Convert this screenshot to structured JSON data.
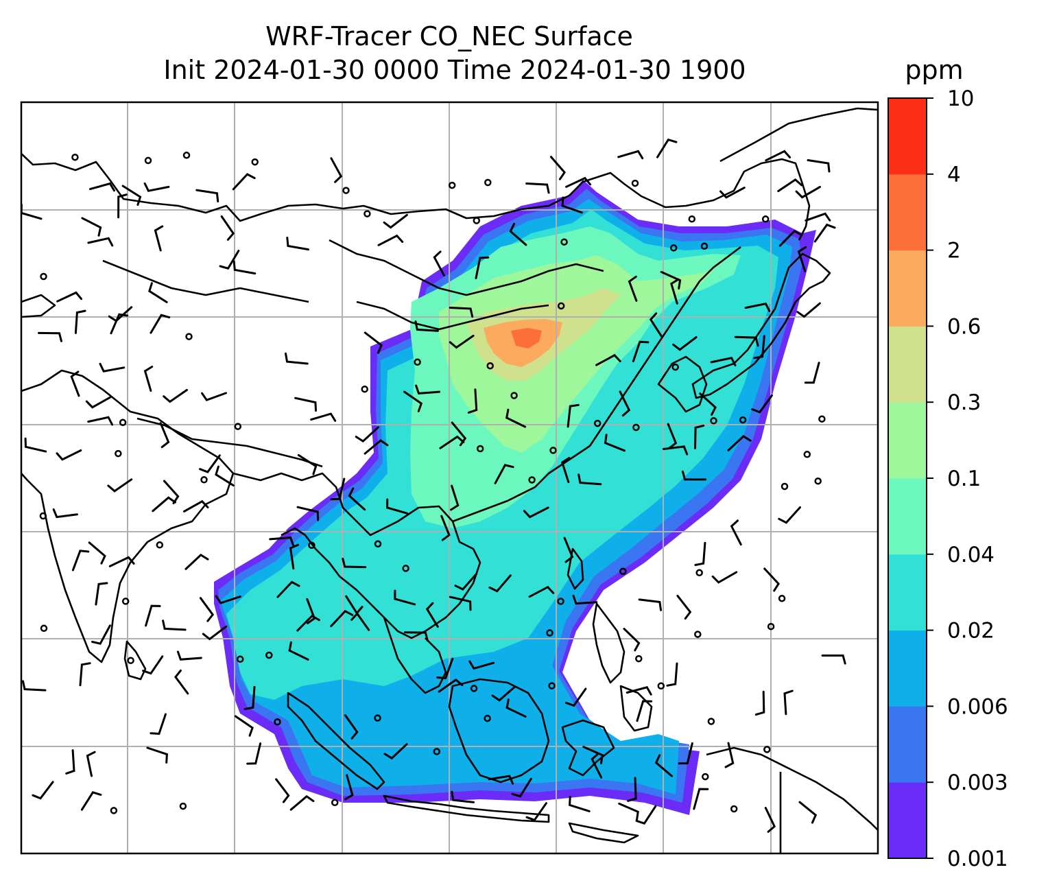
{
  "title": {
    "line1": "WRF-Tracer CO_NEC Surface",
    "line2": "Init 2024-01-30 0000 Time 2024-01-30 1900"
  },
  "colorbar": {
    "unit_label": "ppm",
    "levels": [
      "0.001",
      "0.003",
      "0.006",
      "0.02",
      "0.04",
      "0.1",
      "0.3",
      "0.6",
      "2",
      "4",
      "10"
    ],
    "colors": [
      "#6a2cf6",
      "#3a76f2",
      "#0fb0ea",
      "#33e0d6",
      "#6cf7bf",
      "#9ef79a",
      "#cfe18c",
      "#fcaa5e",
      "#fd6f3a",
      "#fc2e18"
    ]
  },
  "map": {
    "gridlines": true,
    "coastline_color": "#000000",
    "grid_color": "#b0b0b0",
    "background": "#ffffff"
  }
}
